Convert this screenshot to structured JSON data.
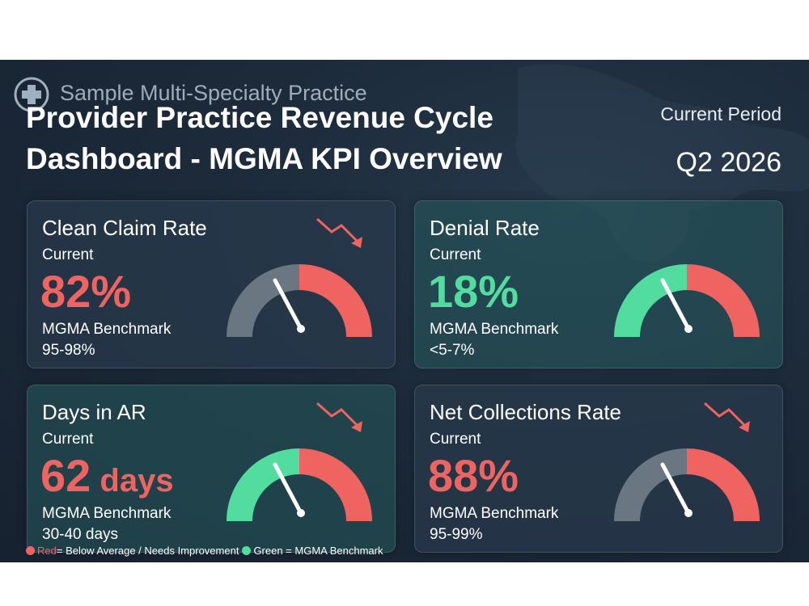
{
  "header": {
    "practice_name": "Sample Multi-Specialty Practice",
    "title": "Provider Practice Revenue Cycle Dashboard - MGMA KPI Overview",
    "period_label": "Current Period",
    "period_value": "Q2 2026"
  },
  "cards": [
    {
      "name": "Clean Claim Rate",
      "current_label": "Current",
      "value": "82%",
      "unit": "",
      "benchmark_label": "MGMA Benchmark",
      "benchmark_value": "95-98%",
      "status": "red",
      "trend": "down",
      "needle_level": 0.3
    },
    {
      "name": "Denial Rate",
      "current_label": "Current",
      "value": "18%",
      "unit": "",
      "benchmark_label": "MGMA Benchmark",
      "benchmark_value": "<5-7%",
      "status": "green",
      "trend": "none",
      "needle_level": 0.3
    },
    {
      "name": "Days in AR",
      "current_label": "Current",
      "value": "62",
      "unit": " days",
      "benchmark_label": "MGMA Benchmark",
      "benchmark_value": "30-40 days",
      "status": "red",
      "trend": "down",
      "needle_level": 0.3
    },
    {
      "name": "Net Collections Rate",
      "current_label": "Current",
      "value": "88%",
      "unit": "",
      "benchmark_label": "MGMA Benchmark",
      "benchmark_value": "95-99%",
      "status": "red",
      "trend": "down",
      "needle_level": 0.3
    }
  ],
  "legend": {
    "red_word": "Red",
    "red_text": " = Below Average / Needs Improvement",
    "green_text": "Green = MGMA Benchmark"
  },
  "colors": {
    "red": "#ef6361",
    "green": "#52dca0",
    "gray": "#6b7683"
  },
  "icons": {
    "logo": "medical-cross-logo-icon",
    "trend": "trend-down-arrow-icon",
    "gauge": "gauge-icon"
  }
}
